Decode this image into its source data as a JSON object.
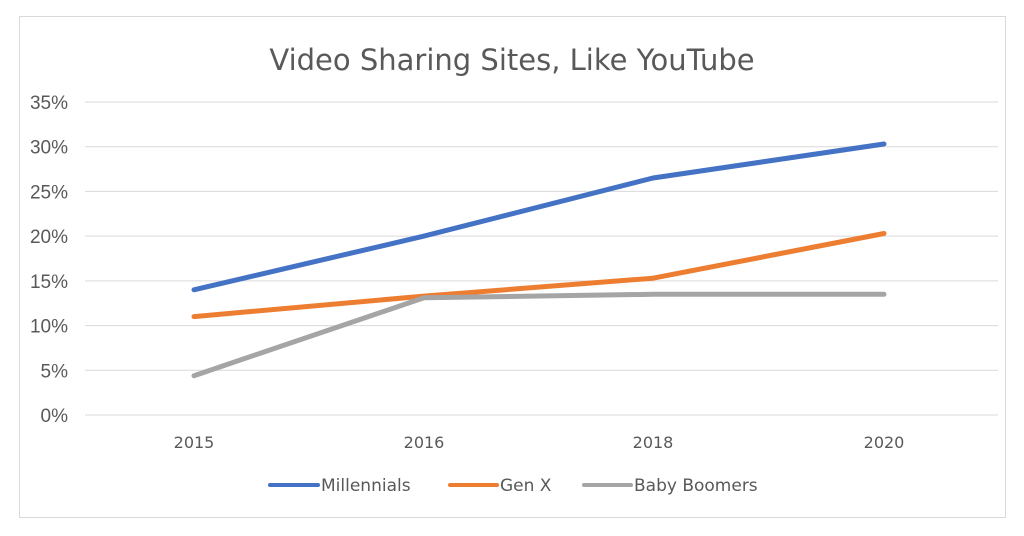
{
  "chart_data": {
    "type": "line",
    "title": "Video Sharing Sites, Like YouTube",
    "categories": [
      "2015",
      "2016",
      "2018",
      "2020"
    ],
    "y_tick_labels": [
      "0%",
      "5%",
      "10%",
      "15%",
      "20%",
      "25%",
      "30%",
      "35%"
    ],
    "ylim": [
      0,
      35
    ],
    "y_unit": "%",
    "grid": true,
    "legend_position": "bottom",
    "series": [
      {
        "name": "Millennials",
        "values": [
          14,
          20,
          26.5,
          30.3
        ],
        "color": "#4472c4"
      },
      {
        "name": "Gen X",
        "values": [
          11,
          13.3,
          15.3,
          20.3
        ],
        "color": "#ed7d31"
      },
      {
        "name": "Baby Boomers",
        "values": [
          4.4,
          13.1,
          13.5,
          13.5
        ],
        "color": "#a5a5a5"
      }
    ]
  }
}
